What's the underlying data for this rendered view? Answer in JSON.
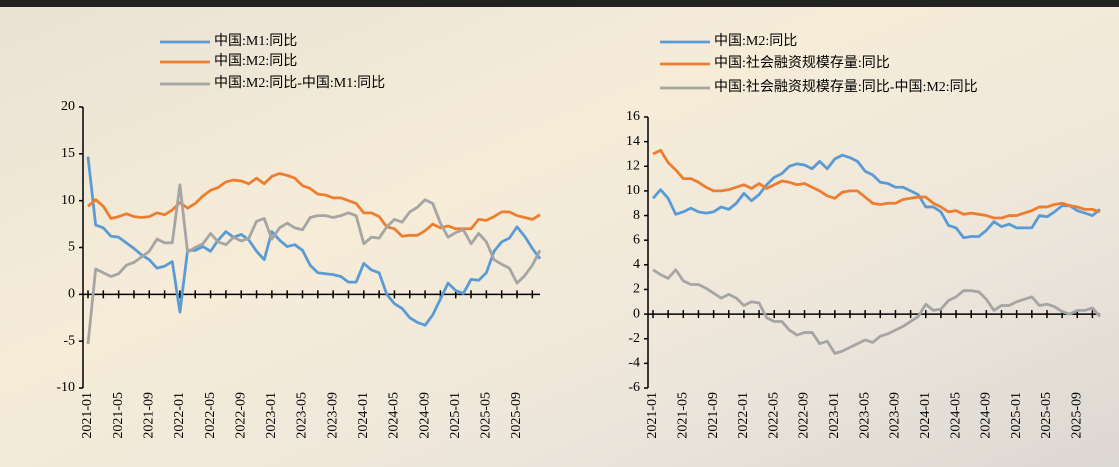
{
  "chart_data": [
    {
      "type": "line",
      "categories": [
        "2021-01",
        null,
        null,
        null,
        "2021-05",
        null,
        null,
        null,
        "2021-09",
        null,
        null,
        null,
        "2022-01",
        null,
        null,
        null,
        "2022-05",
        null,
        null,
        null,
        "2022-09",
        null,
        null,
        null,
        "2023-01",
        null,
        null,
        null,
        "2023-05",
        null,
        null,
        null,
        "2023-09",
        null,
        null,
        null,
        "2024-01",
        null,
        null,
        null,
        "2024-05",
        null,
        null,
        null,
        "2024-09",
        null,
        null,
        null,
        "2025-01",
        null,
        null,
        null,
        "2025-05",
        null,
        null,
        null,
        "2025-09",
        null,
        null,
        null
      ],
      "series": [
        {
          "name": "中国:M1:同比",
          "color": "#5b9bd5",
          "values": [
            14.7,
            7.4,
            7.1,
            6.2,
            6.1,
            5.5,
            4.9,
            4.2,
            3.7,
            2.8,
            3.0,
            3.5,
            -1.9,
            4.7,
            4.7,
            5.1,
            4.6,
            5.8,
            6.7,
            6.1,
            6.4,
            5.8,
            4.6,
            3.7,
            6.7,
            5.8,
            5.1,
            5.3,
            4.7,
            3.1,
            2.3,
            2.2,
            2.1,
            1.9,
            1.3,
            1.3,
            3.3,
            2.6,
            2.3,
            0.0,
            -1.0,
            -1.5,
            -2.5,
            -3.0,
            -3.3,
            -2.2,
            -0.5,
            1.2,
            0.4,
            0.1,
            1.6,
            1.5,
            2.3,
            4.6,
            5.6,
            6.0,
            7.2,
            6.2,
            4.9,
            3.8
          ]
        },
        {
          "name": "中国:M2:同比",
          "color": "#ed7d31",
          "values": [
            9.4,
            10.1,
            9.4,
            8.1,
            8.3,
            8.6,
            8.3,
            8.2,
            8.3,
            8.7,
            8.5,
            9.0,
            9.8,
            9.2,
            9.7,
            10.5,
            11.1,
            11.4,
            12.0,
            12.2,
            12.1,
            11.8,
            12.4,
            11.8,
            12.6,
            12.9,
            12.7,
            12.4,
            11.6,
            11.3,
            10.7,
            10.6,
            10.3,
            10.3,
            10.0,
            9.7,
            8.7,
            8.7,
            8.3,
            7.2,
            7.0,
            6.2,
            6.3,
            6.3,
            6.8,
            7.5,
            7.1,
            7.3,
            7.0,
            7.0,
            7.0,
            8.0,
            7.9,
            8.3,
            8.8,
            8.8,
            8.4,
            8.2,
            8.0,
            8.5
          ]
        },
        {
          "name": "中国:M2:同比-中国:M1:同比",
          "color": "#a5a5a5",
          "values": [
            -5.3,
            2.7,
            2.3,
            1.9,
            2.2,
            3.1,
            3.4,
            4.0,
            4.6,
            5.9,
            5.5,
            5.5,
            11.7,
            4.5,
            5.0,
            5.4,
            6.5,
            5.6,
            5.3,
            6.1,
            5.7,
            6.0,
            7.8,
            8.1,
            5.9,
            7.1,
            7.6,
            7.1,
            6.9,
            8.2,
            8.4,
            8.4,
            8.2,
            8.4,
            8.7,
            8.4,
            5.4,
            6.1,
            6.0,
            7.2,
            8.0,
            7.7,
            8.8,
            9.3,
            10.1,
            9.7,
            7.6,
            6.1,
            6.6,
            6.9,
            5.4,
            6.5,
            5.6,
            3.7,
            3.2,
            2.8,
            1.2,
            2.0,
            3.1,
            4.7
          ]
        }
      ],
      "ylim": [
        -10,
        20
      ],
      "yticks": [
        -10,
        -5,
        0,
        5,
        10,
        15,
        20
      ]
    },
    {
      "type": "line",
      "categories": [
        "2021-01",
        null,
        null,
        null,
        "2021-05",
        null,
        null,
        null,
        "2021-09",
        null,
        null,
        null,
        "2022-01",
        null,
        null,
        null,
        "2022-05",
        null,
        null,
        null,
        "2022-09",
        null,
        null,
        null,
        "2023-01",
        null,
        null,
        null,
        "2023-05",
        null,
        null,
        null,
        "2023-09",
        null,
        null,
        null,
        "2024-01",
        null,
        null,
        null,
        "2024-05",
        null,
        null,
        null,
        "2024-09",
        null,
        null,
        null,
        "2025-01",
        null,
        null,
        null,
        "2025-05",
        null,
        null,
        null,
        "2025-09",
        null,
        null,
        null
      ],
      "series": [
        {
          "name": "中国:M2:同比",
          "color": "#5b9bd5",
          "values": [
            9.4,
            10.1,
            9.4,
            8.1,
            8.3,
            8.6,
            8.3,
            8.2,
            8.3,
            8.7,
            8.5,
            9.0,
            9.8,
            9.2,
            9.7,
            10.5,
            11.1,
            11.4,
            12.0,
            12.2,
            12.1,
            11.8,
            12.4,
            11.8,
            12.6,
            12.9,
            12.7,
            12.4,
            11.6,
            11.3,
            10.7,
            10.6,
            10.3,
            10.3,
            10.0,
            9.7,
            8.7,
            8.7,
            8.3,
            7.2,
            7.0,
            6.2,
            6.3,
            6.3,
            6.8,
            7.5,
            7.1,
            7.3,
            7.0,
            7.0,
            7.0,
            8.0,
            7.9,
            8.3,
            8.8,
            8.8,
            8.4,
            8.2,
            8.0,
            8.5
          ]
        },
        {
          "name": "中国:社会融资规模存量:同比",
          "color": "#ed7d31",
          "values": [
            13.0,
            13.3,
            12.3,
            11.7,
            11.0,
            11.0,
            10.7,
            10.3,
            10.0,
            10.0,
            10.1,
            10.3,
            10.5,
            10.2,
            10.6,
            10.2,
            10.5,
            10.8,
            10.7,
            10.5,
            10.6,
            10.3,
            10.0,
            9.6,
            9.4,
            9.9,
            10.0,
            10.0,
            9.5,
            9.0,
            8.9,
            9.0,
            9.0,
            9.3,
            9.4,
            9.5,
            9.5,
            9.0,
            8.7,
            8.3,
            8.4,
            8.1,
            8.2,
            8.1,
            8.0,
            7.8,
            7.8,
            8.0,
            8.0,
            8.2,
            8.4,
            8.7,
            8.7,
            8.9,
            9.0,
            8.8,
            8.7,
            8.5,
            8.5,
            8.3
          ]
        },
        {
          "name": "中国:社会融资规模存量:同比-中国:M2:同比",
          "color": "#a5a5a5",
          "values": [
            3.6,
            3.2,
            2.9,
            3.6,
            2.7,
            2.4,
            2.4,
            2.1,
            1.7,
            1.3,
            1.6,
            1.3,
            0.7,
            1.0,
            0.9,
            -0.3,
            -0.6,
            -0.6,
            -1.3,
            -1.7,
            -1.5,
            -1.5,
            -2.4,
            -2.2,
            -3.2,
            -3.0,
            -2.7,
            -2.4,
            -2.1,
            -2.3,
            -1.8,
            -1.6,
            -1.3,
            -1.0,
            -0.6,
            -0.2,
            0.8,
            0.3,
            0.4,
            1.1,
            1.4,
            1.9,
            1.9,
            1.8,
            1.2,
            0.3,
            0.7,
            0.7,
            1.0,
            1.2,
            1.4,
            0.7,
            0.8,
            0.6,
            0.2,
            0.0,
            0.3,
            0.3,
            0.5,
            -0.2
          ]
        }
      ],
      "ylim": [
        -6,
        16
      ],
      "yticks": [
        -6,
        -4,
        -2,
        0,
        2,
        4,
        6,
        8,
        10,
        12,
        14,
        16
      ]
    }
  ]
}
